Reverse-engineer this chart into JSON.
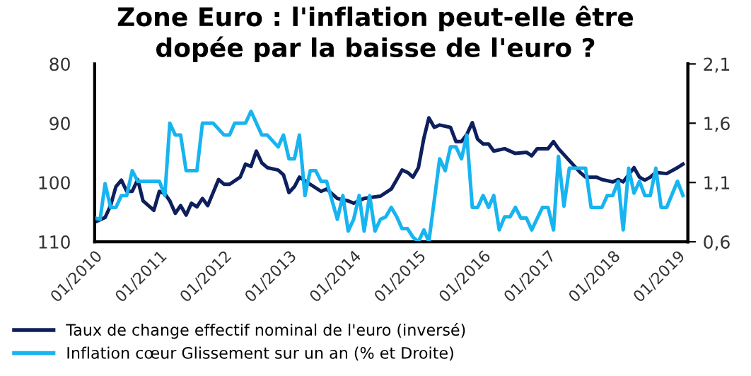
{
  "chart_data": {
    "type": "line",
    "title": "Zone Euro : l'inflation peut-elle être\ndopée par la baisse de l'euro ?",
    "xlim": [
      "2010-01",
      "2019-03"
    ],
    "xticks": [
      {
        "value": "2010-01",
        "label": "01/2010"
      },
      {
        "value": "2011-01",
        "label": "01/2011"
      },
      {
        "value": "2012-01",
        "label": "01/2012"
      },
      {
        "value": "2013-01",
        "label": "01/2013"
      },
      {
        "value": "2014-01",
        "label": "01/2014"
      },
      {
        "value": "2015-01",
        "label": "01/2015"
      },
      {
        "value": "2016-01",
        "label": "01/2016"
      },
      {
        "value": "2017-01",
        "label": "01/2017"
      },
      {
        "value": "2018-01",
        "label": "01/2018"
      },
      {
        "value": "2019-01",
        "label": "01/2019"
      }
    ],
    "ylim": [
      110,
      80
    ],
    "yticks": [
      80,
      90,
      100,
      110
    ],
    "y2lim": [
      0.6,
      2.1
    ],
    "y2ticks": [
      {
        "value": 0.6,
        "label": "0,6"
      },
      {
        "value": 1.1,
        "label": "1,1"
      },
      {
        "value": 1.6,
        "label": "1,6"
      },
      {
        "value": 2.1,
        "label": "2,1"
      }
    ],
    "grid": false,
    "legend": "bottom",
    "marker": "none",
    "line_style": "solid",
    "series": [
      {
        "name": "Taux de change effectif nominal de l'euro (inversé)",
        "color": "#0d1f5c",
        "x": [
          "2010-01",
          "2010-03",
          "2010-04",
          "2010-05",
          "2010-06",
          "2010-07",
          "2010-08",
          "2010-09",
          "2010-10",
          "2010-12",
          "2011-01",
          "2011-02",
          "2011-03",
          "2011-04",
          "2011-05",
          "2011-06",
          "2011-07",
          "2011-08",
          "2011-09",
          "2011-10",
          "2011-12",
          "2012-01",
          "2012-02",
          "2012-04",
          "2012-05",
          "2012-06",
          "2012-07",
          "2012-08",
          "2012-09",
          "2012-11",
          "2012-12",
          "2013-01",
          "2013-02",
          "2013-03",
          "2013-05",
          "2013-07",
          "2013-08",
          "2013-10",
          "2013-12",
          "2014-01",
          "2014-03",
          "2014-06",
          "2014-08",
          "2014-09",
          "2014-10",
          "2014-11",
          "2014-12",
          "2015-01",
          "2015-02",
          "2015-03",
          "2015-04",
          "2015-05",
          "2015-07",
          "2015-08",
          "2015-09",
          "2015-10",
          "2015-11",
          "2015-12",
          "2016-01",
          "2016-02",
          "2016-03",
          "2016-05",
          "2016-07",
          "2016-09",
          "2016-10",
          "2016-11",
          "2017-01",
          "2017-02",
          "2017-03",
          "2017-05",
          "2017-07",
          "2017-08",
          "2017-10",
          "2017-11",
          "2018-01",
          "2018-02",
          "2018-03",
          "2018-05",
          "2018-06",
          "2018-07",
          "2018-08",
          "2018-09",
          "2018-11",
          "2019-01",
          "2019-02"
        ],
        "values": [
          106.7,
          105.9,
          103.9,
          100.7,
          99.6,
          101.5,
          101.5,
          99.5,
          103.1,
          104.7,
          101.5,
          101.9,
          103.1,
          105.2,
          103.9,
          105.5,
          103.5,
          104.1,
          102.7,
          103.9,
          99.5,
          100.3,
          100.3,
          99.1,
          96.9,
          97.3,
          94.7,
          96.7,
          97.5,
          97.9,
          98.7,
          101.7,
          100.7,
          99.1,
          100.3,
          101.5,
          101.1,
          102.7,
          103.1,
          103.5,
          102.7,
          102.3,
          101.1,
          99.5,
          97.9,
          98.3,
          99.1,
          97.5,
          92.5,
          89.1,
          90.7,
          90.3,
          90.7,
          93.1,
          93.1,
          91.9,
          89.9,
          92.7,
          93.5,
          93.5,
          94.7,
          94.3,
          95.1,
          94.9,
          95.5,
          94.3,
          94.3,
          93.1,
          94.3,
          96.3,
          98.3,
          99.1,
          99.1,
          99.5,
          99.9,
          99.5,
          99.9,
          97.5,
          99.1,
          99.6,
          99.1,
          98.3,
          98.5,
          97.5,
          96.9
        ]
      },
      {
        "name": "Inflation cœur Glissement sur un an (% et Droite)",
        "color": "#18b4f0",
        "axis": "y2",
        "x": [
          "2010-01",
          "2010-02",
          "2010-03",
          "2010-04",
          "2010-05",
          "2010-06",
          "2010-07",
          "2010-08",
          "2010-09",
          "2010-10",
          "2011-01",
          "2011-02",
          "2011-03",
          "2011-04",
          "2011-05",
          "2011-06",
          "2011-08",
          "2011-09",
          "2011-11",
          "2012-01",
          "2012-02",
          "2012-03",
          "2012-05",
          "2012-06",
          "2012-08",
          "2012-09",
          "2012-11",
          "2012-12",
          "2013-01",
          "2013-02",
          "2013-03",
          "2013-04",
          "2013-05",
          "2013-06",
          "2013-07",
          "2013-08",
          "2013-10",
          "2013-11",
          "2013-12",
          "2014-01",
          "2014-02",
          "2014-03",
          "2014-04",
          "2014-05",
          "2014-06",
          "2014-07",
          "2014-08",
          "2014-09",
          "2014-10",
          "2014-11",
          "2014-12",
          "2015-01",
          "2015-02",
          "2015-03",
          "2015-05",
          "2015-06",
          "2015-07",
          "2015-08",
          "2015-09",
          "2015-10",
          "2015-11",
          "2015-12",
          "2016-01",
          "2016-02",
          "2016-03",
          "2016-04",
          "2016-05",
          "2016-06",
          "2016-07",
          "2016-08",
          "2016-09",
          "2016-10",
          "2016-12",
          "2017-01",
          "2017-02",
          "2017-03",
          "2017-04",
          "2017-05",
          "2017-07",
          "2017-08",
          "2017-09",
          "2017-11",
          "2017-12",
          "2018-01",
          "2018-02",
          "2018-03",
          "2018-04",
          "2018-05",
          "2018-06",
          "2018-07",
          "2018-08",
          "2018-09",
          "2018-10",
          "2018-11",
          "2019-01",
          "2019-02"
        ],
        "values": [
          0.8,
          0.79,
          1.09,
          0.89,
          0.89,
          0.99,
          0.99,
          1.2,
          1.11,
          1.11,
          1.11,
          0.99,
          1.6,
          1.5,
          1.5,
          1.2,
          1.2,
          1.6,
          1.6,
          1.5,
          1.5,
          1.6,
          1.6,
          1.7,
          1.5,
          1.5,
          1.4,
          1.5,
          1.3,
          1.3,
          1.5,
          0.99,
          1.2,
          1.2,
          1.11,
          1.11,
          0.79,
          0.99,
          0.69,
          0.79,
          0.99,
          0.69,
          0.99,
          0.69,
          0.79,
          0.81,
          0.89,
          0.81,
          0.71,
          0.71,
          0.64,
          0.6,
          0.7,
          0.6,
          1.3,
          1.2,
          1.4,
          1.4,
          1.3,
          1.5,
          0.89,
          0.89,
          0.99,
          0.89,
          0.99,
          0.7,
          0.81,
          0.81,
          0.89,
          0.8,
          0.8,
          0.7,
          0.89,
          0.89,
          0.7,
          1.32,
          0.9,
          1.22,
          1.22,
          1.22,
          0.89,
          0.89,
          0.99,
          0.99,
          1.11,
          0.7,
          1.22,
          1.01,
          1.11,
          0.99,
          0.99,
          1.22,
          0.89,
          0.89,
          1.11,
          0.99
        ]
      }
    ]
  }
}
